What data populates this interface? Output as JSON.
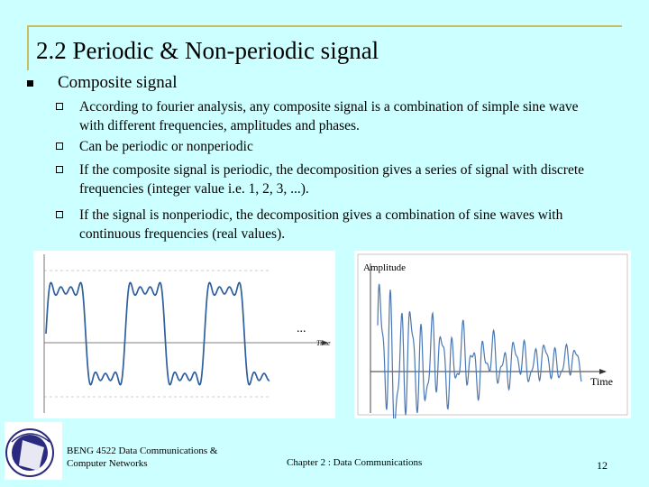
{
  "slide": {
    "title": "2.2 Periodic & Non-periodic signal",
    "bullet": "Composite signal",
    "subbullets": [
      "According to fourier analysis, any composite signal is a combination of simple sine wave with different frequencies, amplitudes and phases.",
      "Can be periodic or nonperiodic",
      "If the composite signal is periodic, the decomposition gives a series of signal with discrete frequencies (integer value i.e. 1, 2, 3, ...).",
      "If the signal is nonperiodic, the decomposition gives a combination of sine waves with continuous frequencies (real values)."
    ]
  },
  "figures": {
    "periodic": {
      "ellipsis": "...",
      "axis_label": "Time"
    },
    "nonperiodic": {
      "y_label": "Amplitude",
      "x_label": "Time"
    }
  },
  "footer": {
    "course": "BENG 4522 Data Communications & Computer Networks",
    "chapter": "Chapter 2 : Data Communications",
    "page": "12"
  },
  "colors": {
    "background": "#ccffff",
    "title_rule": "#c8c060",
    "wave": "#3a6fb0"
  }
}
